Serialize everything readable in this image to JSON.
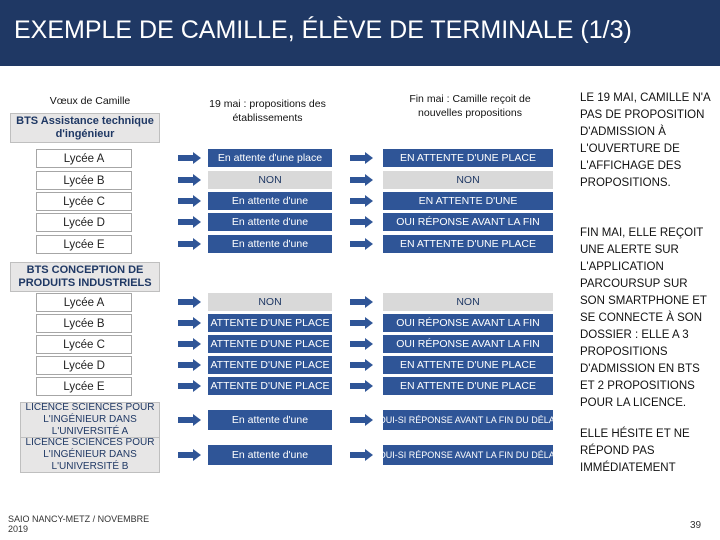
{
  "header": {
    "title": "EXEMPLE DE CAMILLE, ÉLÈVE DE TERMINALE (1/3)"
  },
  "columns": {
    "wishes": "Vœux de Camille",
    "may19": "19 mai : propositions des établissements",
    "end_may": "Fin mai : Camille reçoit de nouvelles propositions"
  },
  "groups": [
    {
      "label": "BTS Assistance technique d'ingénieur",
      "rows": [
        {
          "wish": "Lycée A",
          "may19": "En attente d'une place",
          "end_may": "EN ATTENTE D'UNE PLACE"
        },
        {
          "wish": "Lycée B",
          "may19": "NON",
          "end_may": "NON"
        },
        {
          "wish": "Lycée C",
          "may19": "En attente d'une",
          "end_may": "EN ATTENTE D'UNE"
        },
        {
          "wish": "Lycée D",
          "may19": "En attente d'une",
          "end_may": "OUI RÉPONSE AVANT LA FIN"
        },
        {
          "wish": "Lycée E",
          "may19": "En attente d'une",
          "end_may": "EN ATTENTE D'UNE PLACE"
        }
      ]
    },
    {
      "label": "BTS CONCEPTION DE PRODUITS INDUSTRIELS",
      "rows": [
        {
          "wish": "Lycée A",
          "may19": "NON",
          "end_may": "NON"
        },
        {
          "wish": "Lycée B",
          "may19": "ATTENTE D'UNE PLACE",
          "end_may": "OUI RÉPONSE AVANT LA FIN"
        },
        {
          "wish": "Lycée C",
          "may19": "ATTENTE D'UNE PLACE",
          "end_may": "OUI RÉPONSE AVANT LA FIN"
        },
        {
          "wish": "Lycée D",
          "may19": "ATTENTE D'UNE PLACE",
          "end_may": "EN ATTENTE D'UNE PLACE"
        },
        {
          "wish": "Lycée E",
          "may19": "ATTENTE D'UNE PLACE",
          "end_may": "EN ATTENTE D'UNE PLACE"
        }
      ]
    }
  ],
  "licences": [
    {
      "wish": "LICENCE SCIENCES POUR L'INGÉNIEUR DANS L'UNIVERSITÉ A",
      "may19": "En attente d'une",
      "end_may": "OUI-SI RÉPONSE AVANT LA FIN DU DÉLAI"
    },
    {
      "wish": "LICENCE SCIENCES POUR L'INGÉNIEUR DANS L'UNIVERSITÉ B",
      "may19": "En attente d'une",
      "end_may": "OUI-SI RÉPONSE AVANT LA FIN DU DÉLAI"
    }
  ],
  "notes": [
    "LE 19 MAI, CAMILLE N'A PAS DE PROPOSITION D'ADMISSION À L'OUVERTURE DE L'AFFICHAGE DES PROPOSITIONS.",
    "FIN MAI, ELLE REÇOIT UNE ALERTE SUR L'APPLICATION PARCOURSUP SUR SON SMARTPHONE ET SE CONNECTE À SON DOSSIER : ELLE A 3 PROPOSITIONS D'ADMISSION EN BTS ET 2 PROPOSITIONS POUR LA LICENCE.",
    "ELLE HÉSITE ET NE RÉPOND PAS IMMÉDIATEMENT"
  ],
  "footer": {
    "source": "SAIO NANCY-METZ / NOVEMBRE 2019",
    "page": "39"
  }
}
